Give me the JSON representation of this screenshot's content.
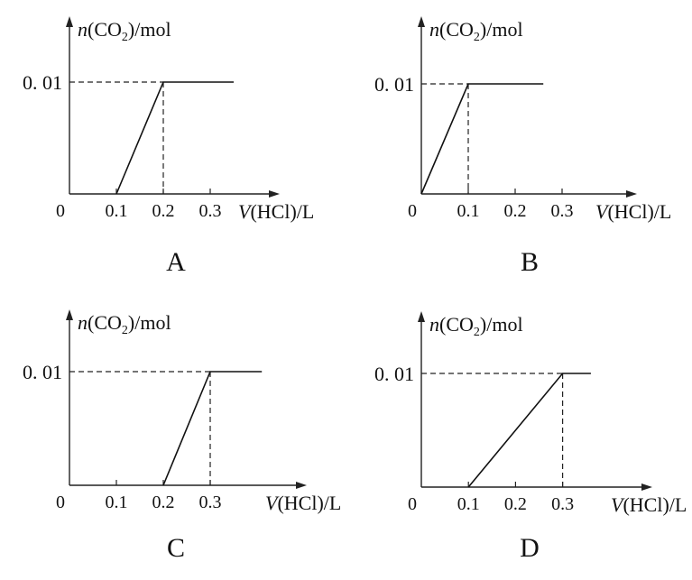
{
  "charts": [
    {
      "letter": "A",
      "ylabel": {
        "n": "n",
        "species_pre": "(CO",
        "sub": "2",
        "unit": ")/mol"
      },
      "xlabel": {
        "v": "V",
        "rest": "(HCl)/L"
      },
      "origin_label": "0",
      "x_ticks": [
        "0.1",
        "0.2",
        "0.3"
      ],
      "y_tick": "0. 01"
    },
    {
      "letter": "B",
      "ylabel": {
        "n": "n",
        "species_pre": "(CO",
        "sub": "2",
        "unit": ")/mol"
      },
      "xlabel": {
        "v": "V",
        "rest": "(HCl)/L"
      },
      "origin_label": "0",
      "x_ticks": [
        "0.1",
        "0.2",
        "0.3"
      ],
      "y_tick": "0. 01"
    },
    {
      "letter": "C",
      "ylabel": {
        "n": "n",
        "species_pre": "(CO",
        "sub": "2",
        "unit": ")/mol"
      },
      "xlabel": {
        "v": "V",
        "rest": "(HCl)/L"
      },
      "origin_label": "0",
      "x_ticks": [
        "0.1",
        "0.2",
        "0.3"
      ],
      "y_tick": "0. 01"
    },
    {
      "letter": "D",
      "ylabel": {
        "n": "n",
        "species_pre": "(CO",
        "sub": "2",
        "unit": ")/mol"
      },
      "xlabel": {
        "v": "V",
        "rest": "(HCl)/L"
      },
      "origin_label": "0",
      "x_ticks": [
        "0.1",
        "0.2",
        "0.3"
      ],
      "y_tick": "0. 01"
    }
  ],
  "chart_data": [
    {
      "type": "line",
      "label": "A",
      "x": [
        0.1,
        0.2,
        0.35
      ],
      "y": [
        0,
        0.01,
        0.01
      ],
      "xlim": [
        0,
        0.35
      ],
      "ylim": [
        0,
        0.01
      ],
      "xlabel": "V(HCl)/L",
      "ylabel": "n(CO2)/mol",
      "grid": false
    },
    {
      "type": "line",
      "label": "B",
      "x": [
        0,
        0.1,
        0.26
      ],
      "y": [
        0,
        0.01,
        0.01
      ],
      "xlim": [
        0,
        0.35
      ],
      "ylim": [
        0,
        0.01
      ],
      "xlabel": "V(HCl)/L",
      "ylabel": "n(CO2)/mol",
      "grid": false
    },
    {
      "type": "line",
      "label": "C",
      "x": [
        0.2,
        0.3,
        0.41
      ],
      "y": [
        0,
        0.01,
        0.01
      ],
      "xlim": [
        0,
        0.35
      ],
      "ylim": [
        0,
        0.01
      ],
      "xlabel": "V(HCl)/L",
      "ylabel": "n(CO2)/mol",
      "grid": false
    },
    {
      "type": "line",
      "label": "D",
      "x": [
        0.1,
        0.3,
        0.36
      ],
      "y": [
        0,
        0.01,
        0.01
      ],
      "xlim": [
        0,
        0.35
      ],
      "ylim": [
        0,
        0.01
      ],
      "xlabel": "V(HCl)/L",
      "ylabel": "n(CO2)/mol",
      "grid": false
    }
  ]
}
